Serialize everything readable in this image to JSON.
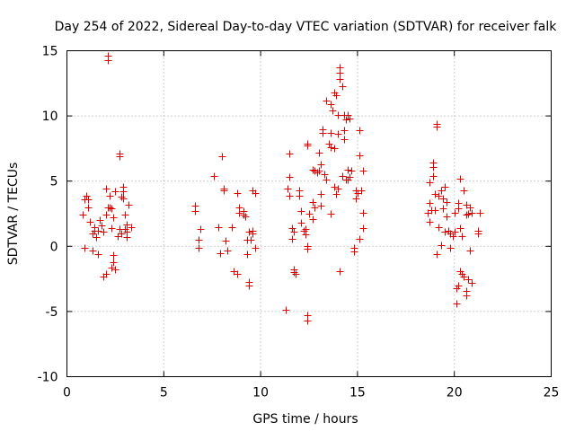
{
  "chart_data": {
    "type": "scatter",
    "title": "Day 254 of 2022, Sidereal Day-to-day VTEC variation (SDTVAR) for receiver falk",
    "xlabel": "GPS time / hours",
    "ylabel": "SDTVAR / TECUs",
    "xlim": [
      0,
      25
    ],
    "ylim": [
      -10,
      15
    ],
    "xticks": [
      0,
      5,
      10,
      15,
      20,
      25
    ],
    "yticks": [
      -10,
      -5,
      0,
      5,
      10,
      15
    ],
    "grid": true,
    "series_color": "#e00000",
    "marker": "plus",
    "points": [
      [
        0.8,
        2.4
      ],
      [
        0.9,
        3.6
      ],
      [
        0.9,
        -0.1
      ],
      [
        1.0,
        3.9
      ],
      [
        1.1,
        3.0
      ],
      [
        1.1,
        3.6
      ],
      [
        1.2,
        1.9
      ],
      [
        1.3,
        1.0
      ],
      [
        1.3,
        -0.3
      ],
      [
        1.4,
        1.5
      ],
      [
        1.4,
        1.2
      ],
      [
        1.5,
        0.7
      ],
      [
        1.6,
        -0.6
      ],
      [
        1.6,
        1.2
      ],
      [
        1.7,
        2.0
      ],
      [
        1.8,
        1.6
      ],
      [
        1.9,
        1.1
      ],
      [
        1.9,
        -2.3
      ],
      [
        2.0,
        4.4
      ],
      [
        2.0,
        2.4
      ],
      [
        2.0,
        -2.1
      ],
      [
        2.1,
        3.0
      ],
      [
        2.1,
        14.6
      ],
      [
        2.1,
        14.3
      ],
      [
        2.2,
        3.9
      ],
      [
        2.2,
        3.0
      ],
      [
        2.3,
        2.9
      ],
      [
        2.3,
        1.4
      ],
      [
        2.3,
        -1.6
      ],
      [
        2.4,
        2.2
      ],
      [
        2.4,
        -0.7
      ],
      [
        2.4,
        -1.2
      ],
      [
        2.5,
        4.2
      ],
      [
        2.5,
        -1.8
      ],
      [
        2.6,
        0.8
      ],
      [
        2.7,
        7.1
      ],
      [
        2.7,
        6.9
      ],
      [
        2.7,
        1.3
      ],
      [
        2.8,
        3.8
      ],
      [
        2.8,
        1.0
      ],
      [
        2.9,
        4.6
      ],
      [
        2.9,
        4.2
      ],
      [
        2.9,
        3.7
      ],
      [
        3.0,
        2.4
      ],
      [
        3.0,
        1.3
      ],
      [
        3.1,
        1.7
      ],
      [
        3.1,
        1.1
      ],
      [
        3.1,
        0.7
      ],
      [
        3.2,
        3.2
      ],
      [
        3.3,
        1.5
      ],
      [
        6.6,
        3.1
      ],
      [
        6.6,
        2.7
      ],
      [
        6.8,
        -0.1
      ],
      [
        6.8,
        0.5
      ],
      [
        6.9,
        1.3
      ],
      [
        7.6,
        5.4
      ],
      [
        7.8,
        1.5
      ],
      [
        7.9,
        -0.5
      ],
      [
        8.0,
        6.9
      ],
      [
        8.1,
        4.4
      ],
      [
        8.1,
        4.3
      ],
      [
        8.2,
        0.4
      ],
      [
        8.3,
        -0.3
      ],
      [
        8.5,
        1.5
      ],
      [
        8.6,
        -1.9
      ],
      [
        8.8,
        4.1
      ],
      [
        8.8,
        -2.1
      ],
      [
        8.9,
        3.0
      ],
      [
        8.9,
        2.6
      ],
      [
        9.1,
        2.4
      ],
      [
        9.1,
        2.7
      ],
      [
        9.2,
        2.3
      ],
      [
        9.3,
        0.5
      ],
      [
        9.3,
        -0.6
      ],
      [
        9.4,
        -2.7
      ],
      [
        9.4,
        -3.0
      ],
      [
        9.4,
        1.1
      ],
      [
        9.5,
        0.5
      ],
      [
        9.6,
        1.2
      ],
      [
        9.6,
        1.0
      ],
      [
        9.6,
        4.3
      ],
      [
        9.7,
        4.1
      ],
      [
        9.7,
        -0.1
      ],
      [
        11.3,
        -4.9
      ],
      [
        11.4,
        4.4
      ],
      [
        11.5,
        7.1
      ],
      [
        11.5,
        5.3
      ],
      [
        11.5,
        3.9
      ],
      [
        11.6,
        1.4
      ],
      [
        11.6,
        0.6
      ],
      [
        11.7,
        1.1
      ],
      [
        11.7,
        -1.8
      ],
      [
        11.7,
        -2.0
      ],
      [
        11.8,
        -2.1
      ],
      [
        12.0,
        4.3
      ],
      [
        12.0,
        3.9
      ],
      [
        12.1,
        2.7
      ],
      [
        12.1,
        1.8
      ],
      [
        12.2,
        1.2
      ],
      [
        12.3,
        1.3
      ],
      [
        12.3,
        0.9
      ],
      [
        12.4,
        7.9
      ],
      [
        12.4,
        7.7
      ],
      [
        12.4,
        0.0
      ],
      [
        12.4,
        -0.2
      ],
      [
        12.4,
        -5.3
      ],
      [
        12.4,
        -5.7
      ],
      [
        12.5,
        2.5
      ],
      [
        12.7,
        5.9
      ],
      [
        12.7,
        3.4
      ],
      [
        12.7,
        2.1
      ],
      [
        12.8,
        5.8
      ],
      [
        12.8,
        3.0
      ],
      [
        12.9,
        5.7
      ],
      [
        13.0,
        7.2
      ],
      [
        13.0,
        5.8
      ],
      [
        13.1,
        6.3
      ],
      [
        13.1,
        4.0
      ],
      [
        13.1,
        3.1
      ],
      [
        13.2,
        9.0
      ],
      [
        13.2,
        8.7
      ],
      [
        13.3,
        5.5
      ],
      [
        13.4,
        11.2
      ],
      [
        13.4,
        5.1
      ],
      [
        13.5,
        7.9
      ],
      [
        13.6,
        8.7
      ],
      [
        13.6,
        7.6
      ],
      [
        13.6,
        10.9
      ],
      [
        13.6,
        2.5
      ],
      [
        13.7,
        10.4
      ],
      [
        13.8,
        11.8
      ],
      [
        13.8,
        7.5
      ],
      [
        13.8,
        4.6
      ],
      [
        13.9,
        11.6
      ],
      [
        13.9,
        4.0
      ],
      [
        14.0,
        10.1
      ],
      [
        14.0,
        8.6
      ],
      [
        14.0,
        4.4
      ],
      [
        14.1,
        13.7
      ],
      [
        14.1,
        13.3
      ],
      [
        14.1,
        12.8
      ],
      [
        14.2,
        12.3
      ],
      [
        14.3,
        10.1
      ],
      [
        14.3,
        8.9
      ],
      [
        14.3,
        8.2
      ],
      [
        14.2,
        5.4
      ],
      [
        14.4,
        9.7
      ],
      [
        14.4,
        5.1
      ],
      [
        14.5,
        10.1
      ],
      [
        14.5,
        5.9
      ],
      [
        14.5,
        5.1
      ],
      [
        14.6,
        9.8
      ],
      [
        14.6,
        5.3
      ],
      [
        14.7,
        5.8
      ],
      [
        14.8,
        -0.4
      ],
      [
        14.8,
        -0.1
      ],
      [
        14.9,
        4.3
      ],
      [
        14.9,
        3.7
      ],
      [
        15.0,
        4.1
      ],
      [
        15.1,
        8.9
      ],
      [
        15.1,
        7.0
      ],
      [
        15.1,
        0.6
      ],
      [
        15.2,
        4.3
      ],
      [
        15.3,
        5.8
      ],
      [
        15.3,
        2.6
      ],
      [
        15.3,
        1.4
      ],
      [
        14.1,
        -1.9
      ],
      [
        18.6,
        2.6
      ],
      [
        18.7,
        4.9
      ],
      [
        18.7,
        3.3
      ],
      [
        18.7,
        1.9
      ],
      [
        18.8,
        2.8
      ],
      [
        18.9,
        6.4
      ],
      [
        18.9,
        5.4
      ],
      [
        18.9,
        6.1
      ],
      [
        19.0,
        4.0
      ],
      [
        19.0,
        2.8
      ],
      [
        19.1,
        9.4
      ],
      [
        19.1,
        9.2
      ],
      [
        19.1,
        -0.6
      ],
      [
        19.2,
        3.9
      ],
      [
        19.2,
        1.5
      ],
      [
        19.3,
        4.3
      ],
      [
        19.3,
        0.1
      ],
      [
        19.4,
        3.7
      ],
      [
        19.4,
        2.9
      ],
      [
        19.5,
        4.6
      ],
      [
        19.5,
        1.1
      ],
      [
        19.6,
        3.4
      ],
      [
        19.6,
        2.3
      ],
      [
        19.7,
        1.2
      ],
      [
        19.8,
        1.0
      ],
      [
        19.8,
        -0.1
      ],
      [
        19.9,
        0.8
      ],
      [
        20.0,
        2.6
      ],
      [
        20.0,
        1.1
      ],
      [
        20.1,
        -4.4
      ],
      [
        20.1,
        -3.2
      ],
      [
        20.2,
        3.3
      ],
      [
        20.2,
        2.9
      ],
      [
        20.2,
        -3.0
      ],
      [
        20.3,
        5.2
      ],
      [
        20.3,
        1.4
      ],
      [
        20.3,
        -1.9
      ],
      [
        20.4,
        0.8
      ],
      [
        20.4,
        -2.1
      ],
      [
        20.5,
        4.3
      ],
      [
        20.5,
        -2.3
      ],
      [
        20.6,
        3.2
      ],
      [
        20.6,
        -3.8
      ],
      [
        20.6,
        -3.4
      ],
      [
        20.7,
        2.5
      ],
      [
        20.7,
        -2.5
      ],
      [
        20.8,
        3.0
      ],
      [
        20.8,
        -0.3
      ],
      [
        20.9,
        2.6
      ],
      [
        20.9,
        -2.8
      ],
      [
        21.2,
        1.2
      ],
      [
        21.2,
        1.0
      ],
      [
        21.3,
        2.6
      ],
      [
        20.6,
        2.4
      ]
    ]
  }
}
